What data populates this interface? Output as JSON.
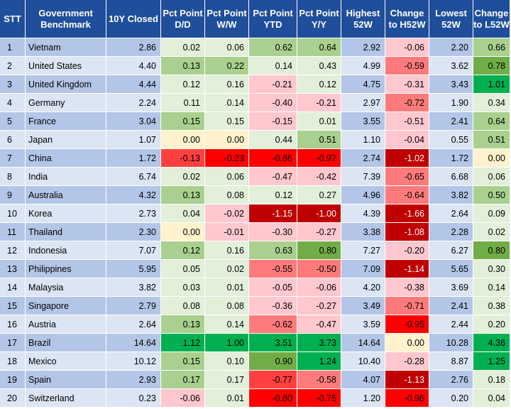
{
  "table": {
    "headers": [
      {
        "key": "stt",
        "label": "STT"
      },
      {
        "key": "benchmark",
        "label": "Government Benchmark"
      },
      {
        "key": "closed",
        "label": "10Y Closed"
      },
      {
        "key": "dd",
        "label": "Pct Point D/D"
      },
      {
        "key": "ww",
        "label": "Pct Point W/W"
      },
      {
        "key": "ytd",
        "label": "Pct Point YTD"
      },
      {
        "key": "yy",
        "label": "Pct Point Y/Y"
      },
      {
        "key": "high",
        "label": "Highest 52W"
      },
      {
        "key": "chg_high",
        "label": "Change to H52W"
      },
      {
        "key": "low",
        "label": "Lowest 52W"
      },
      {
        "key": "chg_low",
        "label": "Change to L52W"
      }
    ],
    "rows": [
      [
        "1",
        "Vietnam",
        "2.86",
        "0.02",
        "0.06",
        "0.62",
        "0.64",
        "2.92",
        "-0.06",
        "2.20",
        "0.66"
      ],
      [
        "2",
        "United States",
        "4.40",
        "0.13",
        "0.22",
        "0.14",
        "0.43",
        "4.99",
        "-0.59",
        "3.62",
        "0.78"
      ],
      [
        "3",
        "United Kingdom",
        "4.44",
        "0.12",
        "0.16",
        "-0.21",
        "0.12",
        "4.75",
        "-0.31",
        "3.43",
        "1.01"
      ],
      [
        "4",
        "Germany",
        "2.24",
        "0.11",
        "0.14",
        "-0.40",
        "-0.21",
        "2.97",
        "-0.72",
        "1.90",
        "0.34"
      ],
      [
        "5",
        "France",
        "3.04",
        "0.15",
        "0.15",
        "-0.15",
        "0.01",
        "3.55",
        "-0.51",
        "2.41",
        "0.64"
      ],
      [
        "6",
        "Japan",
        "1.07",
        "0.00",
        "0.00",
        "0.44",
        "0.51",
        "1.10",
        "-0.04",
        "0.55",
        "0.51"
      ],
      [
        "7",
        "China",
        "1.72",
        "-0.13",
        "-0.23",
        "-0.86",
        "-0.97",
        "2.74",
        "-1.02",
        "1.72",
        "0.00"
      ],
      [
        "8",
        "India",
        "6.74",
        "0.02",
        "0.06",
        "-0.47",
        "-0.42",
        "7.39",
        "-0.65",
        "6.68",
        "0.06"
      ],
      [
        "9",
        "Australia",
        "4.32",
        "0.13",
        "0.08",
        "0.12",
        "0.27",
        "4.96",
        "-0.64",
        "3.82",
        "0.50"
      ],
      [
        "10",
        "Korea",
        "2.73",
        "0.04",
        "-0.02",
        "-1.15",
        "-1.00",
        "4.39",
        "-1.66",
        "2.64",
        "0.09"
      ],
      [
        "11",
        "Thailand",
        "2.30",
        "0.00",
        "-0.01",
        "-0.30",
        "-0.27",
        "3.38",
        "-1.08",
        "2.28",
        "0.02"
      ],
      [
        "12",
        "Indonesia",
        "7.07",
        "0.12",
        "0.16",
        "0.63",
        "0.80",
        "7.27",
        "-0.20",
        "6.27",
        "0.80"
      ],
      [
        "13",
        "Philippines",
        "5.95",
        "0.05",
        "0.02",
        "-0.55",
        "-0.50",
        "7.09",
        "-1.14",
        "5.65",
        "0.30"
      ],
      [
        "14",
        "Malaysia",
        "3.82",
        "0.03",
        "0.01",
        "-0.05",
        "-0.06",
        "4.20",
        "-0.38",
        "3.69",
        "0.14"
      ],
      [
        "15",
        "Singapore",
        "2.79",
        "0.08",
        "0.08",
        "-0.36",
        "-0.27",
        "3.49",
        "-0.71",
        "2.41",
        "0.38"
      ],
      [
        "16",
        "Austria",
        "2.64",
        "0.13",
        "0.14",
        "-0.62",
        "-0.47",
        "3.59",
        "-0.95",
        "2.44",
        "0.20"
      ],
      [
        "17",
        "Brazil",
        "14.64",
        "1.12",
        "1.00",
        "3.51",
        "3.73",
        "14.64",
        "0.00",
        "10.28",
        "4.36"
      ],
      [
        "18",
        "Mexico",
        "10.12",
        "0.15",
        "0.10",
        "0.90",
        "1.24",
        "10.40",
        "-0.28",
        "8.87",
        "1.25"
      ],
      [
        "19",
        "Spain",
        "2.93",
        "0.17",
        "0.17",
        "-0.77",
        "-0.58",
        "4.07",
        "-1.13",
        "2.76",
        "0.18"
      ],
      [
        "20",
        "Switzerland",
        "0.23",
        "-0.06",
        "0.01",
        "-0.80",
        "-0.75",
        "1.20",
        "-0.96",
        "0.20",
        "0.04"
      ]
    ],
    "cell_colors": [
      [
        "base",
        "base",
        "base",
        "#e2efd9",
        "#e2efd9",
        "#a9d08e",
        "#a9d08e",
        "base",
        "#ffc7ce",
        "base",
        "#a9d08e"
      ],
      [
        "base",
        "base",
        "base",
        "#a9d08e",
        "#a9d08e",
        "#e2efd9",
        "#e2efd9",
        "base",
        "#ff7b7b",
        "base",
        "#70ad47"
      ],
      [
        "base",
        "base",
        "base",
        "#e2efd9",
        "#e2efd9",
        "#ffc7ce",
        "#e2efd9",
        "base",
        "#ffc7ce",
        "base",
        "#00b050"
      ],
      [
        "base",
        "base",
        "base",
        "#e2efd9",
        "#e2efd9",
        "#ffc7ce",
        "#ffc7ce",
        "base",
        "#ff7b7b",
        "base",
        "#e2efd9"
      ],
      [
        "base",
        "base",
        "base",
        "#a9d08e",
        "#e2efd9",
        "#ffc7ce",
        "#e2efd9",
        "base",
        "#ffc7ce",
        "base",
        "#a9d08e"
      ],
      [
        "base",
        "base",
        "base",
        "#fff2cc",
        "#fff2cc",
        "#e2efd9",
        "#a9d08e",
        "base",
        "#ffc7ce",
        "base",
        "#a9d08e"
      ],
      [
        "base",
        "base",
        "base",
        "#ff4040",
        "#ff0000",
        "#ff0000",
        "#ff0000",
        "base",
        "#c00000",
        "base",
        "#fff2cc"
      ],
      [
        "base",
        "base",
        "base",
        "#e2efd9",
        "#e2efd9",
        "#ffc7ce",
        "#ffc7ce",
        "base",
        "#ff7b7b",
        "base",
        "#e2efd9"
      ],
      [
        "base",
        "base",
        "base",
        "#a9d08e",
        "#e2efd9",
        "#e2efd9",
        "#e2efd9",
        "base",
        "#ff7b7b",
        "base",
        "#a9d08e"
      ],
      [
        "base",
        "base",
        "base",
        "#e2efd9",
        "#ffc7ce",
        "#c00000",
        "#c00000",
        "base",
        "#c00000",
        "base",
        "#e2efd9"
      ],
      [
        "base",
        "base",
        "base",
        "#fff2cc",
        "#ffc7ce",
        "#ffc7ce",
        "#ffc7ce",
        "base",
        "#c00000",
        "base",
        "#e2efd9"
      ],
      [
        "base",
        "base",
        "base",
        "#a9d08e",
        "#e2efd9",
        "#a9d08e",
        "#70ad47",
        "base",
        "#ffc7ce",
        "base",
        "#70ad47"
      ],
      [
        "base",
        "base",
        "base",
        "#e2efd9",
        "#e2efd9",
        "#ff7b7b",
        "#ff7b7b",
        "base",
        "#c00000",
        "base",
        "#e2efd9"
      ],
      [
        "base",
        "base",
        "base",
        "#e2efd9",
        "#e2efd9",
        "#ffc7ce",
        "#ffc7ce",
        "base",
        "#ffc7ce",
        "base",
        "#e2efd9"
      ],
      [
        "base",
        "base",
        "base",
        "#e2efd9",
        "#e2efd9",
        "#ffc7ce",
        "#ffc7ce",
        "base",
        "#ff7b7b",
        "base",
        "#e2efd9"
      ],
      [
        "base",
        "base",
        "base",
        "#a9d08e",
        "#e2efd9",
        "#ff7b7b",
        "#ffc7ce",
        "base",
        "#ff0000",
        "base",
        "#e2efd9"
      ],
      [
        "base",
        "base",
        "base",
        "#00b050",
        "#00b050",
        "#00b050",
        "#00b050",
        "base",
        "#fff2cc",
        "base",
        "#00b050"
      ],
      [
        "base",
        "base",
        "base",
        "#a9d08e",
        "#e2efd9",
        "#70ad47",
        "#00b050",
        "base",
        "#ffc7ce",
        "base",
        "#00b050"
      ],
      [
        "base",
        "base",
        "base",
        "#a9d08e",
        "#e2efd9",
        "#ff4040",
        "#ff7b7b",
        "base",
        "#c00000",
        "base",
        "#e2efd9"
      ],
      [
        "base",
        "base",
        "base",
        "#ffc7ce",
        "#e2efd9",
        "#ff0000",
        "#ff0000",
        "base",
        "#ff0000",
        "base",
        "#e2efd9"
      ]
    ],
    "text_colors": {
      "on_dark_red": "#ffffff",
      "default": "#000000"
    }
  }
}
